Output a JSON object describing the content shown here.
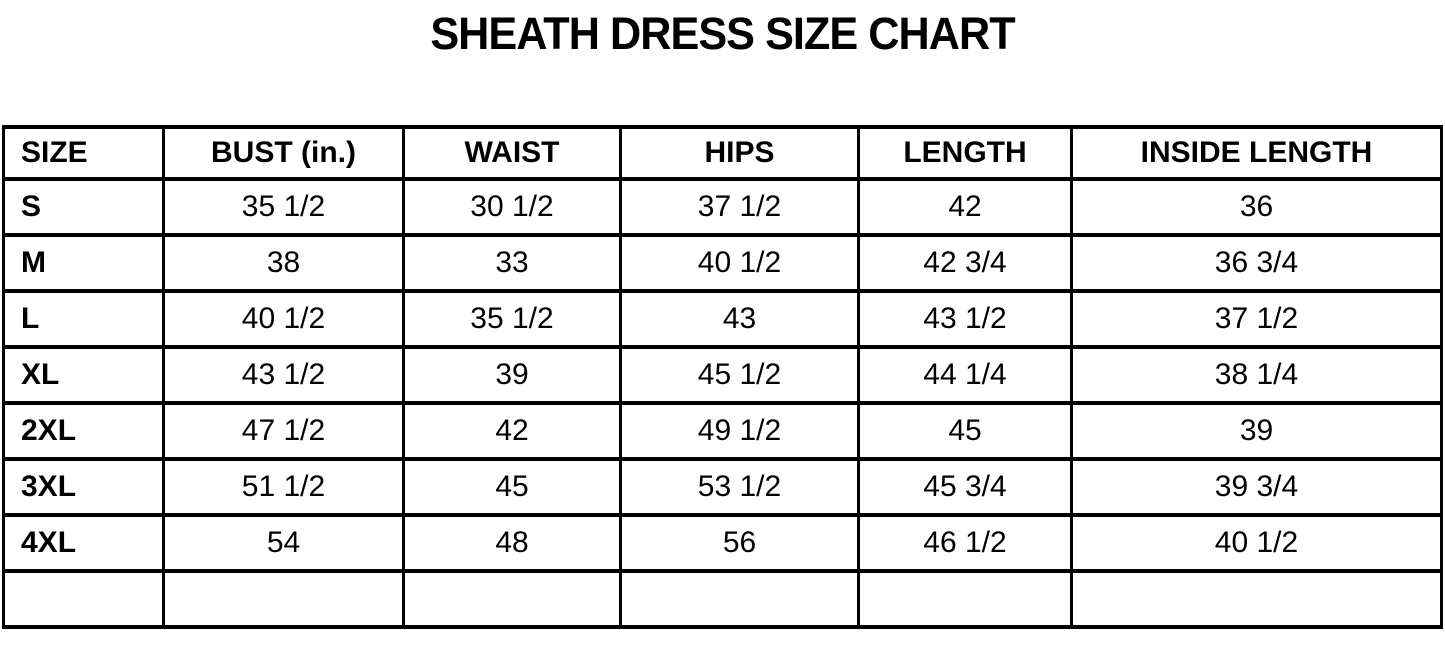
{
  "title": "SHEATH DRESS SIZE CHART",
  "table": {
    "columns": [
      "SIZE",
      "BUST (in.)",
      "WAIST",
      "HIPS",
      "LENGTH",
      "INSIDE LENGTH"
    ],
    "rows": [
      [
        "S",
        "35 1/2",
        "30 1/2",
        "37 1/2",
        "42",
        "36"
      ],
      [
        "M",
        "38",
        "33",
        "40 1/2",
        "42 3/4",
        "36 3/4"
      ],
      [
        "L",
        "40 1/2",
        "35 1/2",
        "43",
        "43 1/2",
        "37 1/2"
      ],
      [
        "XL",
        "43 1/2",
        "39",
        "45 1/2",
        "44 1/4",
        "38 1/4"
      ],
      [
        "2XL",
        "47 1/2",
        "42",
        "49 1/2",
        "45",
        "39"
      ],
      [
        "3XL",
        "51 1/2",
        "45",
        "53 1/2",
        "45 3/4",
        "39 3/4"
      ],
      [
        "4XL",
        "54",
        "48",
        "56",
        "46 1/2",
        "40 1/2"
      ],
      [
        "",
        "",
        "",
        "",
        "",
        ""
      ]
    ]
  },
  "colors": {
    "text": "#000000",
    "border": "#000000",
    "background": "#ffffff"
  }
}
